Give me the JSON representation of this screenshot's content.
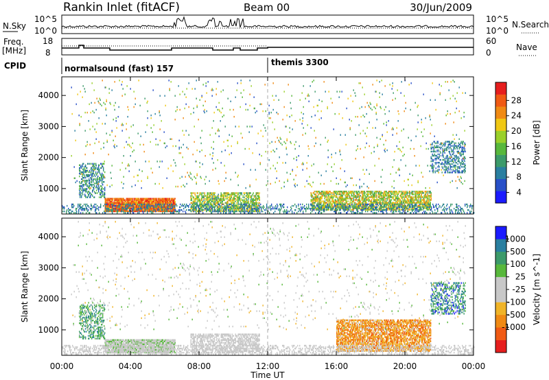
{
  "header": {
    "station": "Rankin Inlet (fitACF)",
    "beam": "Beam 00",
    "date": "30/Jun/2009"
  },
  "status_panels": {
    "nsky_label": "N.Sky",
    "nsearch_label": "N.Search",
    "freq_label_1": "Freq.",
    "freq_label_2": "[MHz]",
    "nave_label": "Nave",
    "cpid_label": "CPID",
    "nsky_ticks": {
      "top": "10^5",
      "bottom": "10^0"
    },
    "nsearch_ticks": {
      "top": "10^5",
      "bottom": "10^0"
    },
    "freq_ticks": {
      "top": "18",
      "bottom": "8"
    },
    "nave_ticks": {
      "top": "60",
      "bottom": "0"
    },
    "cpid_segments": [
      {
        "label": "normalsound (fast) 157",
        "start_hour": 0,
        "end_hour": 12
      },
      {
        "label": "themis 3300",
        "start_hour": 12,
        "end_hour": 24
      }
    ],
    "nsky_bursts": [
      [
        6.5,
        7.2
      ],
      [
        8.5,
        9.3
      ],
      [
        9.8,
        10.6
      ]
    ]
  },
  "chart_data": [
    {
      "type": "heatmap",
      "name": "power-panel",
      "ylabel": "Slant Range [km]",
      "y_ticks": [
        1000,
        2000,
        3000,
        4000
      ],
      "ylim": [
        180,
        4600
      ],
      "xlim": [
        0,
        24
      ],
      "colorbar_label": "Power [dB]",
      "colorbar_ticks": [
        "28",
        "24",
        "20",
        "16",
        "12",
        "8",
        "4"
      ],
      "colors": [
        "#1b1bff",
        "#2850c8",
        "#2a7fa0",
        "#3c9a6a",
        "#58b83c",
        "#9ad02a",
        "#f0c814",
        "#f08a14",
        "#f05a14",
        "#e61e1e"
      ],
      "scale_min": 0,
      "scale_max": 30,
      "regions": [
        {
          "x0": 2.5,
          "x1": 6.6,
          "y0": 250,
          "y1": 700,
          "v0": 20,
          "v1": 29,
          "density": 0.9
        },
        {
          "x0": 7.5,
          "x1": 11.5,
          "y0": 250,
          "y1": 850,
          "v0": 8,
          "v1": 22,
          "density": 0.55
        },
        {
          "x0": 14.5,
          "x1": 21.5,
          "y0": 300,
          "y1": 900,
          "v0": 10,
          "v1": 24,
          "density": 0.6
        },
        {
          "x0": 1.0,
          "x1": 2.5,
          "y0": 700,
          "y1": 1800,
          "v0": 4,
          "v1": 14,
          "density": 0.35
        },
        {
          "x0": 0.0,
          "x1": 24.0,
          "y0": 200,
          "y1": 500,
          "v0": 4,
          "v1": 12,
          "density": 0.25
        },
        {
          "x0": 21.5,
          "x1": 23.5,
          "y0": 1500,
          "y1": 2500,
          "v0": 4,
          "v1": 12,
          "density": 0.3
        },
        {
          "x0": 0.5,
          "x1": 23.5,
          "y0": 1000,
          "y1": 4500,
          "v0": 4,
          "v1": 24,
          "density": 0.02
        }
      ]
    },
    {
      "type": "heatmap",
      "name": "velocity-panel",
      "ylabel": "Slant Range [km]",
      "y_ticks": [
        1000,
        2000,
        3000,
        4000
      ],
      "ylim": [
        180,
        4600
      ],
      "xlim": [
        0,
        24
      ],
      "colorbar_label": "Velocity [m s^-1]",
      "colorbar_ticks": [
        "1000",
        "500",
        "100",
        "25",
        "-25",
        "-100",
        "-500",
        "-1000"
      ],
      "colors": [
        "#e61e1e",
        "#f05a14",
        "#f08a14",
        "#f0b428",
        "#c8c8c8",
        "#c8c8c8",
        "#58b83c",
        "#3c9a6a",
        "#2a7fa0",
        "#1b1bff"
      ],
      "scale_min": -1000,
      "scale_max": 1000,
      "regions": [
        {
          "x0": 2.5,
          "x1": 6.6,
          "y0": 250,
          "y1": 700,
          "v0": -25,
          "v1": 300,
          "density": 0.85
        },
        {
          "x0": 7.5,
          "x1": 11.5,
          "y0": 250,
          "y1": 850,
          "v0": -200,
          "v1": 100,
          "density": 0.5
        },
        {
          "x0": 16.0,
          "x1": 21.5,
          "y0": 300,
          "y1": 1300,
          "v0": -700,
          "v1": -150,
          "density": 0.65
        },
        {
          "x0": 1.0,
          "x1": 2.5,
          "y0": 700,
          "y1": 1800,
          "v0": 150,
          "v1": 700,
          "density": 0.35
        },
        {
          "x0": 0.0,
          "x1": 24.0,
          "y0": 200,
          "y1": 500,
          "v0": -25,
          "v1": 25,
          "density": 0.3
        },
        {
          "x0": 21.5,
          "x1": 23.5,
          "y0": 1500,
          "y1": 2500,
          "v0": 300,
          "v1": 900,
          "density": 0.3
        },
        {
          "x0": 0.5,
          "x1": 23.5,
          "y0": 1000,
          "y1": 4500,
          "v0": -300,
          "v1": 300,
          "density": 0.02
        }
      ]
    }
  ],
  "x_axis": {
    "label": "Time UT",
    "ticks": [
      "00:00",
      "04:00",
      "08:00",
      "12:00",
      "16:00",
      "20:00",
      "00:00"
    ],
    "tick_hours": [
      0,
      4,
      8,
      12,
      16,
      20,
      24
    ]
  }
}
